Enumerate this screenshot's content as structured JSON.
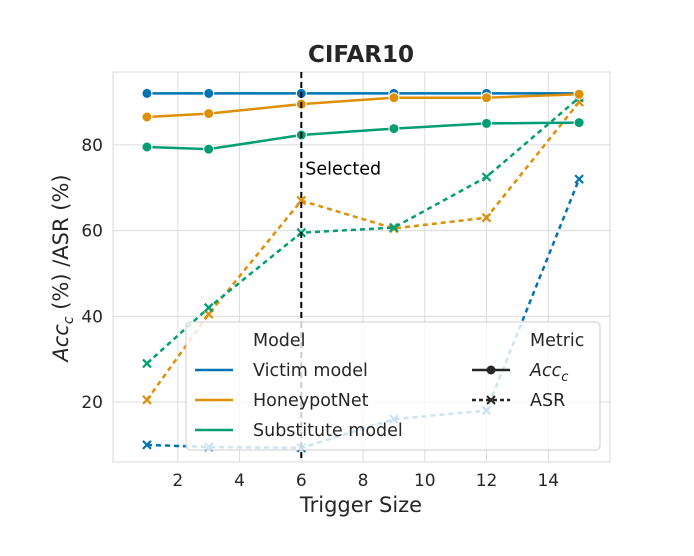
{
  "chart_data": {
    "type": "line",
    "title": "CIFAR10",
    "xlabel": "Trigger Size",
    "ylabel": "Acc_c (%) /ASR (%)",
    "xlim": [
      -0.1,
      16.0
    ],
    "ylim": [
      6,
      97
    ],
    "xticks": [
      2,
      4,
      6,
      8,
      10,
      12,
      14
    ],
    "yticks": [
      20,
      40,
      60,
      80
    ],
    "grid": true,
    "x": [
      1,
      3,
      6,
      9,
      12,
      15
    ],
    "series": [
      {
        "name": "Victim model",
        "metric": "Acc_c",
        "color": "#0173b2",
        "values": [
          92.0,
          92.0,
          92.0,
          92.0,
          92.0,
          92.0
        ]
      },
      {
        "name": "HoneypotNet",
        "metric": "Acc_c",
        "color": "#de8f05",
        "values": [
          86.5,
          87.3,
          89.5,
          91.0,
          91.0,
          91.8
        ]
      },
      {
        "name": "Substitute model",
        "metric": "Acc_c",
        "color": "#029e73",
        "values": [
          79.5,
          79.0,
          82.3,
          83.8,
          85.0,
          85.2
        ]
      },
      {
        "name": "Victim model",
        "metric": "ASR",
        "color": "#0173b2",
        "values": [
          10.0,
          9.5,
          9.3,
          16.0,
          18.0,
          72.0
        ]
      },
      {
        "name": "HoneypotNet",
        "metric": "ASR",
        "color": "#de8f05",
        "values": [
          20.5,
          40.5,
          67.0,
          60.5,
          63.0,
          90.0
        ]
      },
      {
        "name": "Substitute model",
        "metric": "ASR",
        "color": "#029e73",
        "values": [
          29.0,
          42.0,
          59.5,
          60.7,
          72.5,
          91.0
        ]
      }
    ],
    "vline": {
      "x": 6,
      "label": "Selected"
    },
    "legend": {
      "placement": "lower-right",
      "model_title": "Model",
      "metric_title": "Metric",
      "models": [
        "Victim model",
        "HoneypotNet",
        "Substitute model"
      ],
      "metric_acc": "Acc",
      "metric_acc_sub": "c",
      "metric_asr": "ASR"
    }
  }
}
